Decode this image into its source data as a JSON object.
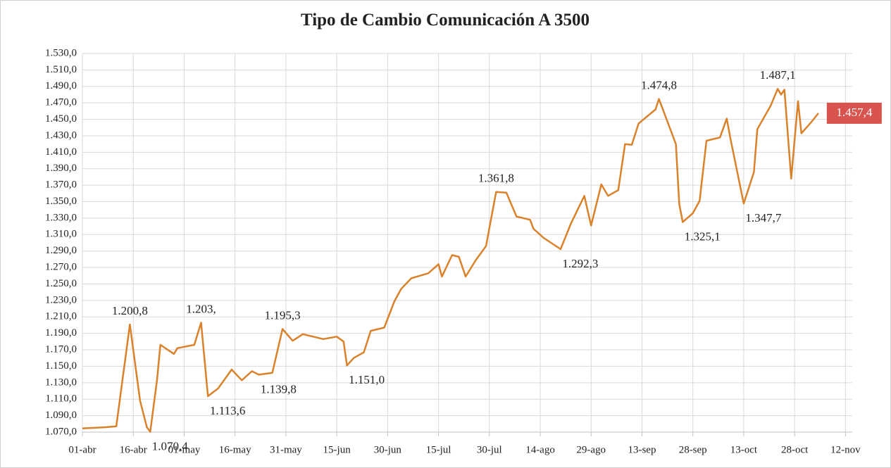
{
  "chart_data": {
    "type": "line",
    "title": "Tipo de Cambio Comunicación A 3500",
    "x": [
      "04-01",
      "04-08",
      "04-11",
      "04-15",
      "04-18",
      "04-20",
      "04-21",
      "04-23",
      "04-24",
      "04-28",
      "04-29",
      "05-04",
      "05-06",
      "05-08",
      "05-11",
      "05-15",
      "05-18",
      "05-21",
      "05-23",
      "05-27",
      "05-30",
      "06-02",
      "06-05",
      "06-11",
      "06-15",
      "06-17",
      "06-18",
      "06-20",
      "06-23",
      "06-25",
      "06-29",
      "07-02",
      "07-04",
      "07-07",
      "07-12",
      "07-15",
      "07-16",
      "07-19",
      "07-21",
      "07-23",
      "07-26",
      "07-29",
      "08-01",
      "08-04",
      "08-07",
      "08-11",
      "08-12",
      "08-15",
      "08-20",
      "08-23",
      "08-27",
      "08-29",
      "09-01",
      "09-03",
      "09-06",
      "09-08",
      "09-10",
      "09-12",
      "09-17",
      "09-18",
      "09-23",
      "09-24",
      "09-25",
      "09-28",
      "09-30",
      "10-02",
      "10-06",
      "10-08",
      "10-09",
      "10-13",
      "10-16",
      "10-17",
      "10-21",
      "10-23",
      "10-24",
      "10-25",
      "10-27",
      "10-29",
      "10-30",
      "11-02",
      "11-04"
    ],
    "series": [
      {
        "name": "Tipo de cambio",
        "color": "#d9822b",
        "values": [
          1074.5,
          1076,
          1077,
          1200.8,
          1108,
          1076,
          1070.4,
          1133,
          1176,
          1165,
          1172,
          1176,
          1203,
          1113.6,
          1123,
          1146,
          1133,
          1144,
          1139.8,
          1142,
          1195.3,
          1181,
          1189,
          1183,
          1186,
          1180,
          1151.0,
          1160,
          1167,
          1193,
          1197,
          1229,
          1244,
          1257,
          1263,
          1274,
          1259,
          1285,
          1283,
          1259,
          1279,
          1296,
          1361.8,
          1361,
          1332,
          1328,
          1317,
          1306,
          1292.3,
          1323,
          1357,
          1321,
          1371,
          1357,
          1364,
          1420,
          1419,
          1445,
          1462,
          1474.8,
          1420,
          1347,
          1325.1,
          1336,
          1351,
          1424,
          1428,
          1451,
          1428,
          1347.7,
          1386,
          1438,
          1467,
          1487.1,
          1480,
          1486,
          1378,
          1472,
          1433,
          1447,
          1457.4
        ],
        "value_labels": [
          null,
          null,
          null,
          "1.200,8",
          null,
          null,
          "1.070,4",
          null,
          null,
          null,
          null,
          null,
          "1.203,",
          "1.113,6",
          null,
          null,
          null,
          null,
          "1.139,8",
          null,
          "1.195,3",
          null,
          null,
          null,
          null,
          null,
          "1.151,0",
          null,
          null,
          null,
          null,
          null,
          null,
          null,
          null,
          null,
          null,
          null,
          null,
          null,
          null,
          null,
          "1.361,8",
          null,
          null,
          null,
          null,
          null,
          "1.292,3",
          null,
          null,
          null,
          null,
          null,
          null,
          null,
          null,
          null,
          null,
          "1.474,8",
          null,
          null,
          "1.325,1",
          null,
          null,
          null,
          null,
          null,
          null,
          "1.347,7",
          null,
          null,
          null,
          "1.487,1",
          null,
          null,
          null,
          null,
          null,
          null,
          "1.457,4"
        ]
      }
    ],
    "xlim": [
      "04-01",
      "11-14"
    ],
    "xticks": [
      {
        "value": "04-01",
        "label": "01-abr"
      },
      {
        "value": "04-16",
        "label": "16-abr"
      },
      {
        "value": "05-01",
        "label": "01-may"
      },
      {
        "value": "05-16",
        "label": "16-may"
      },
      {
        "value": "05-31",
        "label": "31-may"
      },
      {
        "value": "06-15",
        "label": "15-jun"
      },
      {
        "value": "06-30",
        "label": "30-jun"
      },
      {
        "value": "07-15",
        "label": "15-jul"
      },
      {
        "value": "07-30",
        "label": "30-jul"
      },
      {
        "value": "08-14",
        "label": "14-ago"
      },
      {
        "value": "08-29",
        "label": "29-ago"
      },
      {
        "value": "09-13",
        "label": "13-sep"
      },
      {
        "value": "09-28",
        "label": "28-sep"
      },
      {
        "value": "10-13",
        "label": "13-oct"
      },
      {
        "value": "10-28",
        "label": "28-oct"
      },
      {
        "value": "11-12",
        "label": "12-nov"
      }
    ],
    "ylim": [
      1070,
      1530
    ],
    "yticks": [
      {
        "value": 1070,
        "label": "1.070,0"
      },
      {
        "value": 1090,
        "label": "1.090,0"
      },
      {
        "value": 1110,
        "label": "1.110,0"
      },
      {
        "value": 1130,
        "label": "1.130,0"
      },
      {
        "value": 1150,
        "label": "1.150,0"
      },
      {
        "value": 1170,
        "label": "1.170,0"
      },
      {
        "value": 1190,
        "label": "1.190,0"
      },
      {
        "value": 1210,
        "label": "1.210,0"
      },
      {
        "value": 1230,
        "label": "1.230,0"
      },
      {
        "value": 1250,
        "label": "1.250,0"
      },
      {
        "value": 1270,
        "label": "1.270,0"
      },
      {
        "value": 1290,
        "label": "1.290,0"
      },
      {
        "value": 1310,
        "label": "1.310,0"
      },
      {
        "value": 1330,
        "label": "1.330,0"
      },
      {
        "value": 1350,
        "label": "1.350,0"
      },
      {
        "value": 1370,
        "label": "1.370,0"
      },
      {
        "value": 1390,
        "label": "1.390,0"
      },
      {
        "value": 1410,
        "label": "1.410,0"
      },
      {
        "value": 1430,
        "label": "1.430,0"
      },
      {
        "value": 1450,
        "label": "1.450,0"
      },
      {
        "value": 1470,
        "label": "1.470,0"
      },
      {
        "value": 1490,
        "label": "1.490,0"
      },
      {
        "value": 1510,
        "label": "1.510,0"
      },
      {
        "value": 1530,
        "label": "1.530,0"
      }
    ],
    "grid": true
  }
}
